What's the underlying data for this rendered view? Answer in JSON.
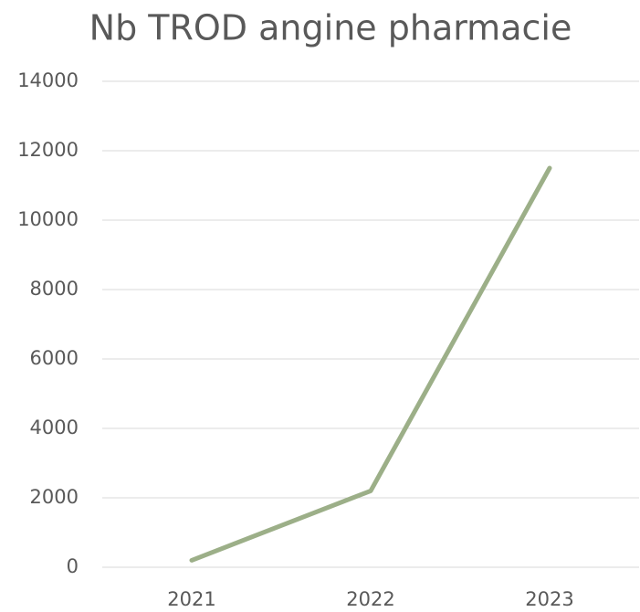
{
  "chart_data": {
    "type": "line",
    "title": "Nb TROD angine pharmacie",
    "categories": [
      "2021",
      "2022",
      "2023"
    ],
    "series": [
      {
        "name": "Nb TROD angine pharmacie",
        "color": "#9caf88",
        "values": [
          200,
          2200,
          11500
        ]
      }
    ],
    "ylim": [
      0,
      14000
    ],
    "yticks": [
      0,
      2000,
      4000,
      6000,
      8000,
      10000,
      12000,
      14000
    ],
    "grid": true
  }
}
